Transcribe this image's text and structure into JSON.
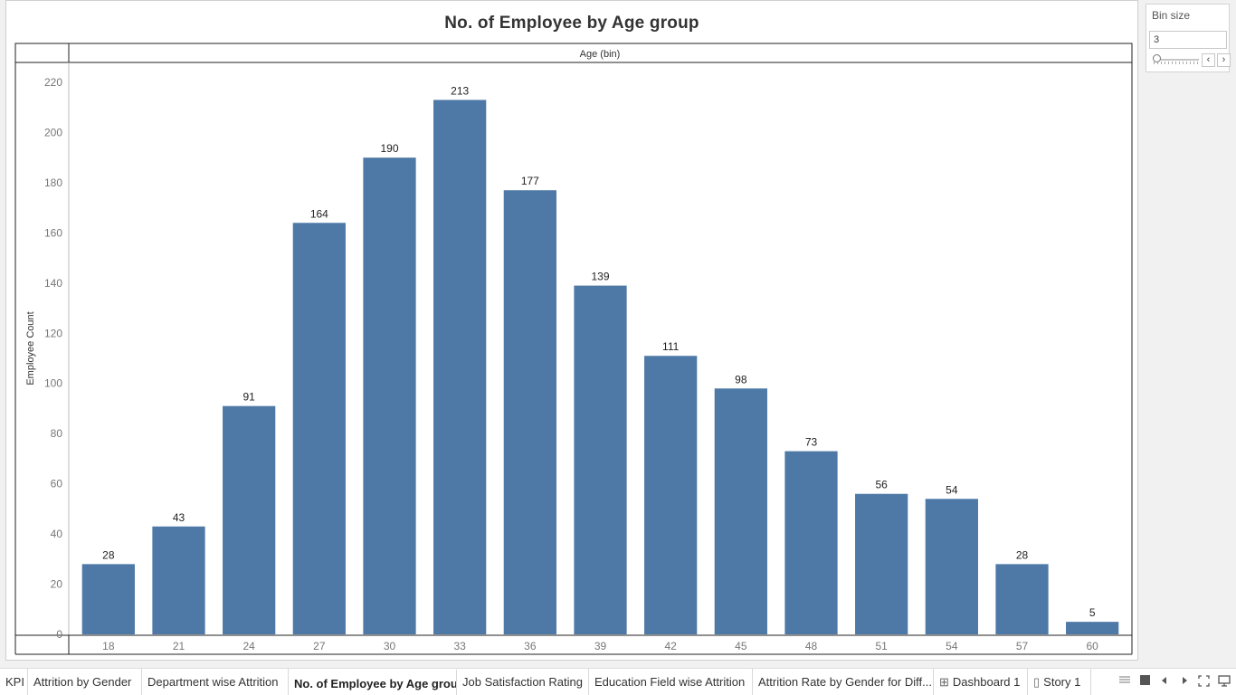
{
  "chart_data": {
    "type": "bar",
    "title": "No. of Employee by Age group",
    "column_header": "Age (bin)",
    "xlabel": "",
    "ylabel": "Employee Count",
    "categories": [
      "18",
      "21",
      "24",
      "27",
      "30",
      "33",
      "36",
      "39",
      "42",
      "45",
      "48",
      "51",
      "54",
      "57",
      "60"
    ],
    "values": [
      28,
      43,
      91,
      164,
      190,
      213,
      177,
      139,
      111,
      98,
      73,
      56,
      54,
      28,
      5
    ],
    "ylim": [
      0,
      220
    ],
    "yticks": [
      0,
      20,
      40,
      60,
      80,
      100,
      120,
      140,
      160,
      180,
      200,
      220
    ],
    "bar_color": "#4e79a7",
    "grid": false,
    "data_labels": true
  },
  "parameter": {
    "title": "Bin size",
    "value": "3",
    "prev_icon": "chevron-left-icon",
    "next_icon": "chevron-right-icon"
  },
  "tabs": [
    {
      "label": "KPI",
      "icon": ""
    },
    {
      "label": "Attrition by Gender",
      "icon": ""
    },
    {
      "label": "Department wise Attrition",
      "icon": ""
    },
    {
      "label": "No. of Employee by Age group",
      "icon": "",
      "active": true
    },
    {
      "label": "Job Satisfaction Rating",
      "icon": ""
    },
    {
      "label": "Education Field wise Attrition",
      "icon": ""
    },
    {
      "label": "Attrition Rate by Gender for Diff...",
      "icon": ""
    },
    {
      "label": "Dashboard 1",
      "icon": "dashboard-icon"
    },
    {
      "label": "Story 1",
      "icon": "story-icon"
    }
  ],
  "nav_controls": [
    "sheet-sorter-icon",
    "filmstrip-icon",
    "previous-sheet-icon",
    "next-sheet-icon",
    "fullscreen-icon",
    "presentation-icon"
  ]
}
